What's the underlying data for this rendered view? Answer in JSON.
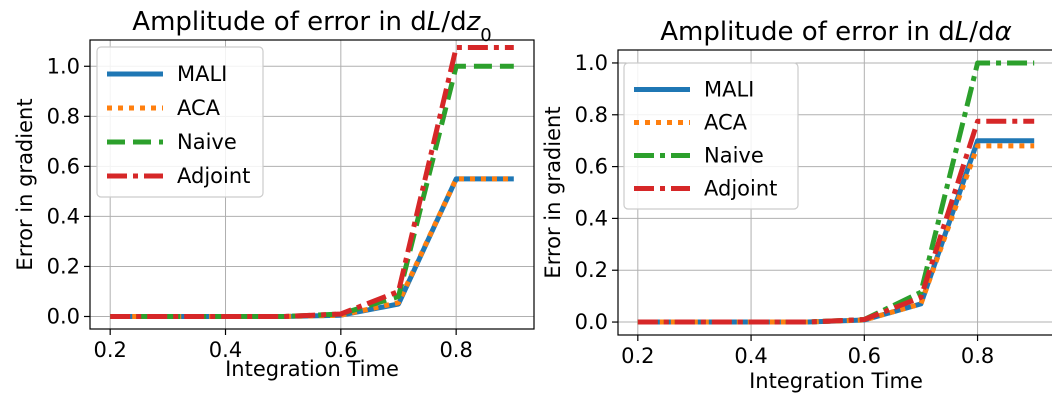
{
  "chart_data": [
    {
      "type": "line",
      "title": "Amplitude of error in dL/dz",
      "title_subscript": "0",
      "xlabel": "Integration Time",
      "ylabel": "Error in gradient",
      "xlim": [
        0.165,
        0.935
      ],
      "ylim": [
        -0.05,
        1.105
      ],
      "xticks": [
        0.2,
        0.4,
        0.6,
        0.8
      ],
      "yticks": [
        0.0,
        0.2,
        0.4,
        0.6,
        0.8,
        1.0
      ],
      "grid": true,
      "legend_position": "upper-left",
      "x": [
        0.2,
        0.3,
        0.4,
        0.5,
        0.6,
        0.7,
        0.8,
        0.9
      ],
      "series": [
        {
          "name": "MALI",
          "color": "#1f77b4",
          "style": "solid",
          "values": [
            0.0,
            0.0,
            0.0,
            0.0,
            0.005,
            0.05,
            0.55,
            0.55
          ]
        },
        {
          "name": "ACA",
          "color": "#ff7f0e",
          "style": "dotted",
          "values": [
            0.0,
            0.0,
            0.0,
            0.0,
            0.005,
            0.055,
            0.55,
            0.55
          ]
        },
        {
          "name": "Naive",
          "color": "#2ca02c",
          "style": "dashed",
          "values": [
            0.0,
            0.0,
            0.0,
            0.0,
            0.01,
            0.08,
            1.0,
            1.0
          ]
        },
        {
          "name": "Adjoint",
          "color": "#d62728",
          "style": "dashdot",
          "values": [
            0.0,
            0.0,
            0.0,
            0.0,
            0.01,
            0.1,
            1.075,
            1.075
          ]
        }
      ]
    },
    {
      "type": "line",
      "title": "Amplitude of error in dL/dα",
      "title_subscript": "",
      "xlabel": "Integration Time",
      "ylabel": "Error in gradient",
      "xlim": [
        0.165,
        0.935
      ],
      "ylim": [
        -0.05,
        1.05
      ],
      "xticks": [
        0.2,
        0.4,
        0.6,
        0.8
      ],
      "yticks": [
        0.0,
        0.2,
        0.4,
        0.6,
        0.8,
        1.0
      ],
      "grid": true,
      "legend_position": "upper-left",
      "x": [
        0.2,
        0.3,
        0.4,
        0.5,
        0.6,
        0.7,
        0.8,
        0.9
      ],
      "series": [
        {
          "name": "MALI",
          "color": "#1f77b4",
          "style": "solid",
          "values": [
            0.0,
            0.0,
            0.0,
            0.0,
            0.008,
            0.07,
            0.7,
            0.7
          ]
        },
        {
          "name": "ACA",
          "color": "#ff7f0e",
          "style": "dotted",
          "values": [
            0.0,
            0.0,
            0.0,
            0.0,
            0.008,
            0.07,
            0.68,
            0.68
          ]
        },
        {
          "name": "Naive",
          "color": "#2ca02c",
          "style": "dashdot",
          "values": [
            0.0,
            0.0,
            0.0,
            0.0,
            0.01,
            0.115,
            1.0,
            1.0
          ]
        },
        {
          "name": "Adjoint",
          "color": "#d62728",
          "style": "dashdot",
          "values": [
            0.0,
            0.0,
            0.0,
            0.0,
            0.01,
            0.095,
            0.775,
            0.775
          ]
        }
      ]
    }
  ]
}
